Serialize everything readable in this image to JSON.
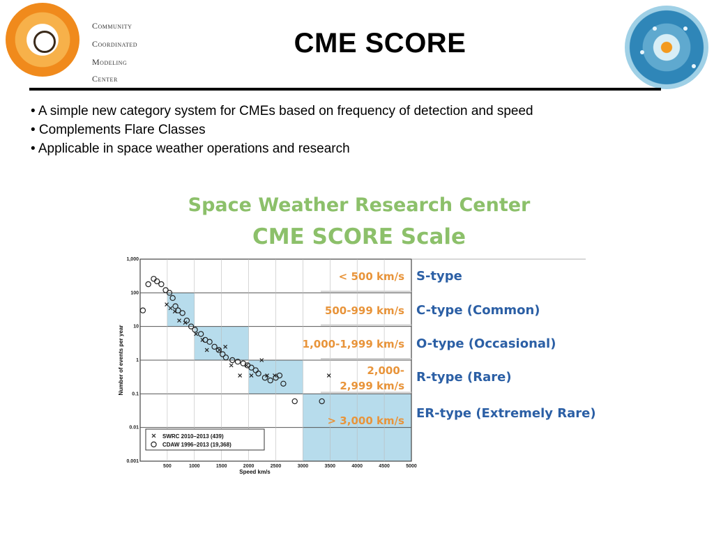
{
  "logo_left": {
    "lines": [
      "Community",
      "Coordinated",
      "Modeling",
      "Center"
    ]
  },
  "title": "CME SCORE",
  "bullets": [
    "• A simple new category system for CMEs based on frequency of detection and speed",
    "• Complements Flare Classes",
    "• Applicable in space weather operations and research"
  ],
  "figure": {
    "title_line1": "Space Weather Research Center",
    "title_line2": "CME SCORE Scale"
  },
  "colors": {
    "band": "#b7dcec",
    "speed_label": "#e8943a",
    "type_label": "#2b5fa5",
    "figure_title": "#8cc06a"
  },
  "chart_data": {
    "type": "scatter",
    "xlabel": "Speed km/s",
    "ylabel": "Number of events per year",
    "xlim": [
      0,
      5000
    ],
    "ylim": [
      0.001,
      1000
    ],
    "y_scale": "log",
    "x_ticks": [
      "500",
      "1000",
      "1500",
      "2000",
      "2500",
      "3000",
      "3500",
      "4000",
      "4500",
      "5000"
    ],
    "y_ticks": [
      "1,000",
      "100",
      "10",
      "1",
      "0.1",
      "0.01",
      "0.001"
    ],
    "series": [
      {
        "name": "SWRC 2010–2013 (439)",
        "marker": "x",
        "points": [
          [
            490,
            45
          ],
          [
            560,
            35
          ],
          [
            640,
            28
          ],
          [
            720,
            15
          ],
          [
            830,
            13
          ],
          [
            1030,
            6
          ],
          [
            1150,
            4
          ],
          [
            1230,
            2
          ],
          [
            1460,
            2
          ],
          [
            1570,
            2.5
          ],
          [
            1680,
            0.7
          ],
          [
            1840,
            0.35
          ],
          [
            1960,
            0.7
          ],
          [
            2050,
            0.35
          ],
          [
            2240,
            1
          ],
          [
            2340,
            0.35
          ],
          [
            2480,
            0.35
          ],
          [
            3480,
            0.35
          ]
        ]
      },
      {
        "name": "CDAW 1996–2013 (19,368)",
        "marker": "o",
        "points": [
          [
            50,
            30
          ],
          [
            150,
            180
          ],
          [
            250,
            260
          ],
          [
            310,
            220
          ],
          [
            390,
            180
          ],
          [
            470,
            120
          ],
          [
            540,
            100
          ],
          [
            600,
            70
          ],
          [
            650,
            40
          ],
          [
            700,
            30
          ],
          [
            780,
            25
          ],
          [
            860,
            15
          ],
          [
            940,
            10
          ],
          [
            1010,
            8
          ],
          [
            1120,
            6
          ],
          [
            1200,
            4
          ],
          [
            1280,
            3.5
          ],
          [
            1370,
            2.5
          ],
          [
            1450,
            2
          ],
          [
            1520,
            1.5
          ],
          [
            1580,
            1.2
          ],
          [
            1700,
            1
          ],
          [
            1800,
            0.9
          ],
          [
            1900,
            0.8
          ],
          [
            1980,
            0.7
          ],
          [
            2050,
            0.6
          ],
          [
            2130,
            0.5
          ],
          [
            2180,
            0.4
          ],
          [
            2300,
            0.3
          ],
          [
            2400,
            0.25
          ],
          [
            2500,
            0.3
          ],
          [
            2570,
            0.35
          ],
          [
            2640,
            0.2
          ],
          [
            2850,
            0.06
          ],
          [
            3350,
            0.06
          ]
        ]
      }
    ],
    "legend": "bottom-left",
    "bands": [
      {
        "speed": "< 500 km/s",
        "type": "S-type"
      },
      {
        "speed": "500-999 km/s",
        "type": "C-type (Common)"
      },
      {
        "speed": "1,000-1,999 km/s",
        "type": "O-type (Occasional)"
      },
      {
        "speed": "2,000-\n2,999 km/s",
        "type": "R-type (Rare)"
      },
      {
        "speed": "> 3,000 km/s",
        "type": "ER-type (Extremely Rare)"
      }
    ]
  }
}
